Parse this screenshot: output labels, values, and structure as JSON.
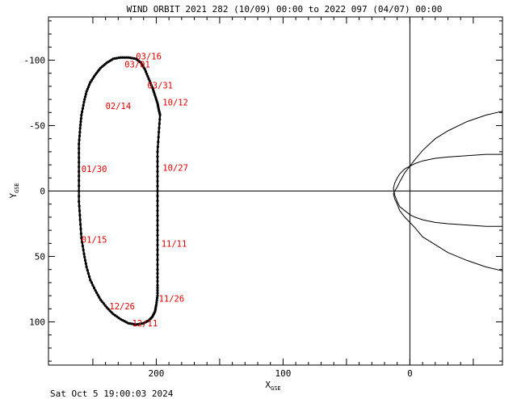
{
  "title": "WIND ORBIT 2021 282 (10/09) 00:00 to 2022 097 (04/07) 00:00",
  "footer": "Sat Oct  5 19:00:03 2024",
  "chart_data": {
    "type": "line",
    "title": "WIND ORBIT 2021 282 (10/09) 00:00 to 2022 097 (04/07) 00:00",
    "xlabel": "X",
    "xlabel_sub": "GSE",
    "ylabel": "Y",
    "ylabel_sub": "GSE",
    "xlim": [
      285,
      -73
    ],
    "ylim": [
      133,
      -133
    ],
    "x_reversed": true,
    "y_reversed": true,
    "grid": false,
    "x_ticks": [
      200,
      100,
      0
    ],
    "y_ticks": [
      -100,
      -50,
      0,
      50,
      100
    ],
    "colors": {
      "orbit": "#000000",
      "date_label": "#dd0000",
      "boundary": "#000000"
    },
    "orbit": {
      "x": [
        197,
        198,
        199,
        199,
        199,
        199,
        199,
        199,
        199,
        199,
        199,
        200,
        201,
        203,
        206,
        210,
        216,
        222,
        228,
        234,
        239,
        244,
        248,
        252,
        255,
        257,
        259,
        260,
        261,
        261,
        261,
        261,
        260,
        259,
        257,
        255,
        252,
        248,
        244,
        239,
        234,
        228,
        222,
        216,
        212,
        209,
        206,
        203,
        201,
        199,
        198,
        197
      ],
      "y": [
        -58,
        -45,
        -30,
        -15,
        0,
        15,
        30,
        45,
        60,
        72,
        80,
        87,
        92,
        96,
        99,
        101,
        102,
        101,
        98,
        94,
        89,
        83,
        76,
        68,
        58,
        48,
        36,
        22,
        8,
        -8,
        -22,
        -36,
        -48,
        -58,
        -68,
        -76,
        -83,
        -89,
        -94,
        -98,
        -101,
        -102,
        -102,
        -101,
        -98,
        -93,
        -86,
        -79,
        -73,
        -67,
        -62,
        -58
      ]
    },
    "date_labels": [
      {
        "text": "10/12",
        "x": 195,
        "y": -68
      },
      {
        "text": "10/27",
        "x": 195,
        "y": -18
      },
      {
        "text": "11/11",
        "x": 196,
        "y": 40
      },
      {
        "text": "11/26",
        "x": 198,
        "y": 82
      },
      {
        "text": "12/11",
        "x": 219,
        "y": 101
      },
      {
        "text": "12/26",
        "x": 237,
        "y": 88
      },
      {
        "text": "01/15",
        "x": 259,
        "y": 37
      },
      {
        "text": "01/30",
        "x": 259,
        "y": -17
      },
      {
        "text": "02/14",
        "x": 240,
        "y": -65
      },
      {
        "text": "03/01",
        "x": 225,
        "y": -97
      },
      {
        "text": "03/16",
        "x": 216,
        "y": -103
      },
      {
        "text": "03/31",
        "x": 207,
        "y": -81
      }
    ],
    "magnetopause": {
      "x": [
        -73,
        -60,
        -45,
        -30,
        -20,
        -10,
        -4,
        0,
        4,
        8,
        10,
        12,
        13,
        12,
        10,
        8,
        4,
        0,
        -4,
        -10,
        -20,
        -30,
        -45,
        -60,
        -73
      ],
      "y": [
        -61,
        -58,
        -53,
        -46,
        -40,
        -31,
        -24,
        -19,
        -14,
        -7,
        -3,
        0,
        2,
        6,
        10,
        15,
        20,
        24,
        28,
        35,
        41,
        47,
        53,
        58,
        61
      ]
    },
    "bow_shock": {
      "x": [
        -73,
        -60,
        -45,
        -30,
        -20,
        -10,
        -4,
        0,
        4,
        8,
        10,
        12,
        13,
        12,
        10,
        8,
        4,
        0,
        -4,
        -10,
        -20,
        -30,
        -45,
        -60,
        -73
      ],
      "y": [
        -28,
        -28,
        -27,
        -26,
        -25,
        -23,
        -21,
        -19,
        -17,
        -13,
        -10,
        -6,
        -2,
        3,
        8,
        12,
        15,
        18,
        20,
        22,
        24,
        25,
        26,
        27,
        27
      ]
    }
  }
}
